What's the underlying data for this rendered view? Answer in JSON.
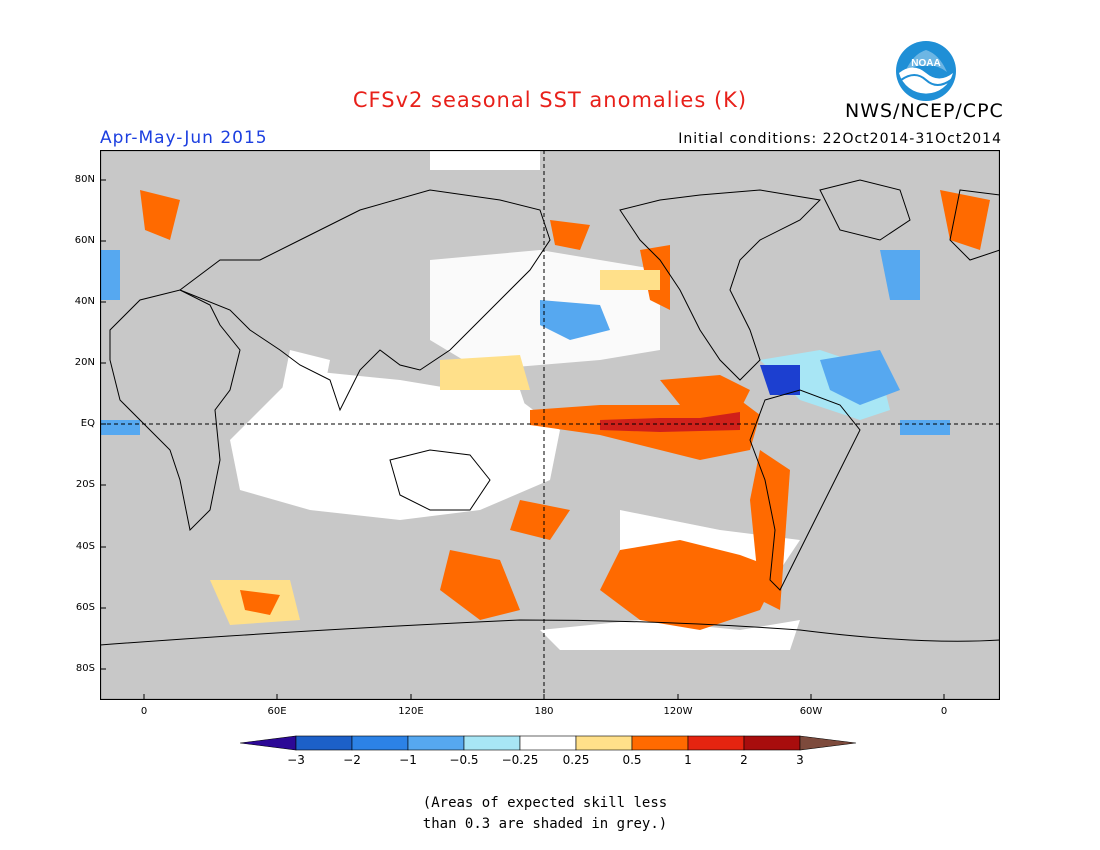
{
  "header": {
    "title": "CFSv2 seasonal SST anomalies (K)",
    "agency": "NWS/NCEP/CPC",
    "season": "Apr-May-Jun 2015",
    "initial_conditions": "Initial conditions: 22Oct2014-31Oct2014"
  },
  "logo": {
    "name": "noaa-logo",
    "text": "NOAA"
  },
  "map": {
    "lat_labels": [
      "80N",
      "60N",
      "40N",
      "20N",
      "EQ",
      "20S",
      "40S",
      "60S",
      "80S"
    ],
    "lon_labels": [
      "0",
      "60E",
      "120E",
      "180",
      "120W",
      "60W",
      "0"
    ],
    "background_grey": "#c8c8c8",
    "skill_mask_color": "grey"
  },
  "colorbar": {
    "levels": [
      "-3",
      "-2",
      "-1",
      "-0.5",
      "-0.25",
      "0.25",
      "0.5",
      "1",
      "2",
      "3"
    ],
    "colors": [
      "#2c0896",
      "#1c60c8",
      "#2c82e6",
      "#56a8f0",
      "#a8e6f5",
      "#ffffff",
      "#ffe08a",
      "#ff6a00",
      "#e52410",
      "#a80d0d",
      "#7d4a3c"
    ]
  },
  "footnote": {
    "line1": "(Areas of expected skill less",
    "line2": "than 0.3 are shaded in grey.)"
  }
}
